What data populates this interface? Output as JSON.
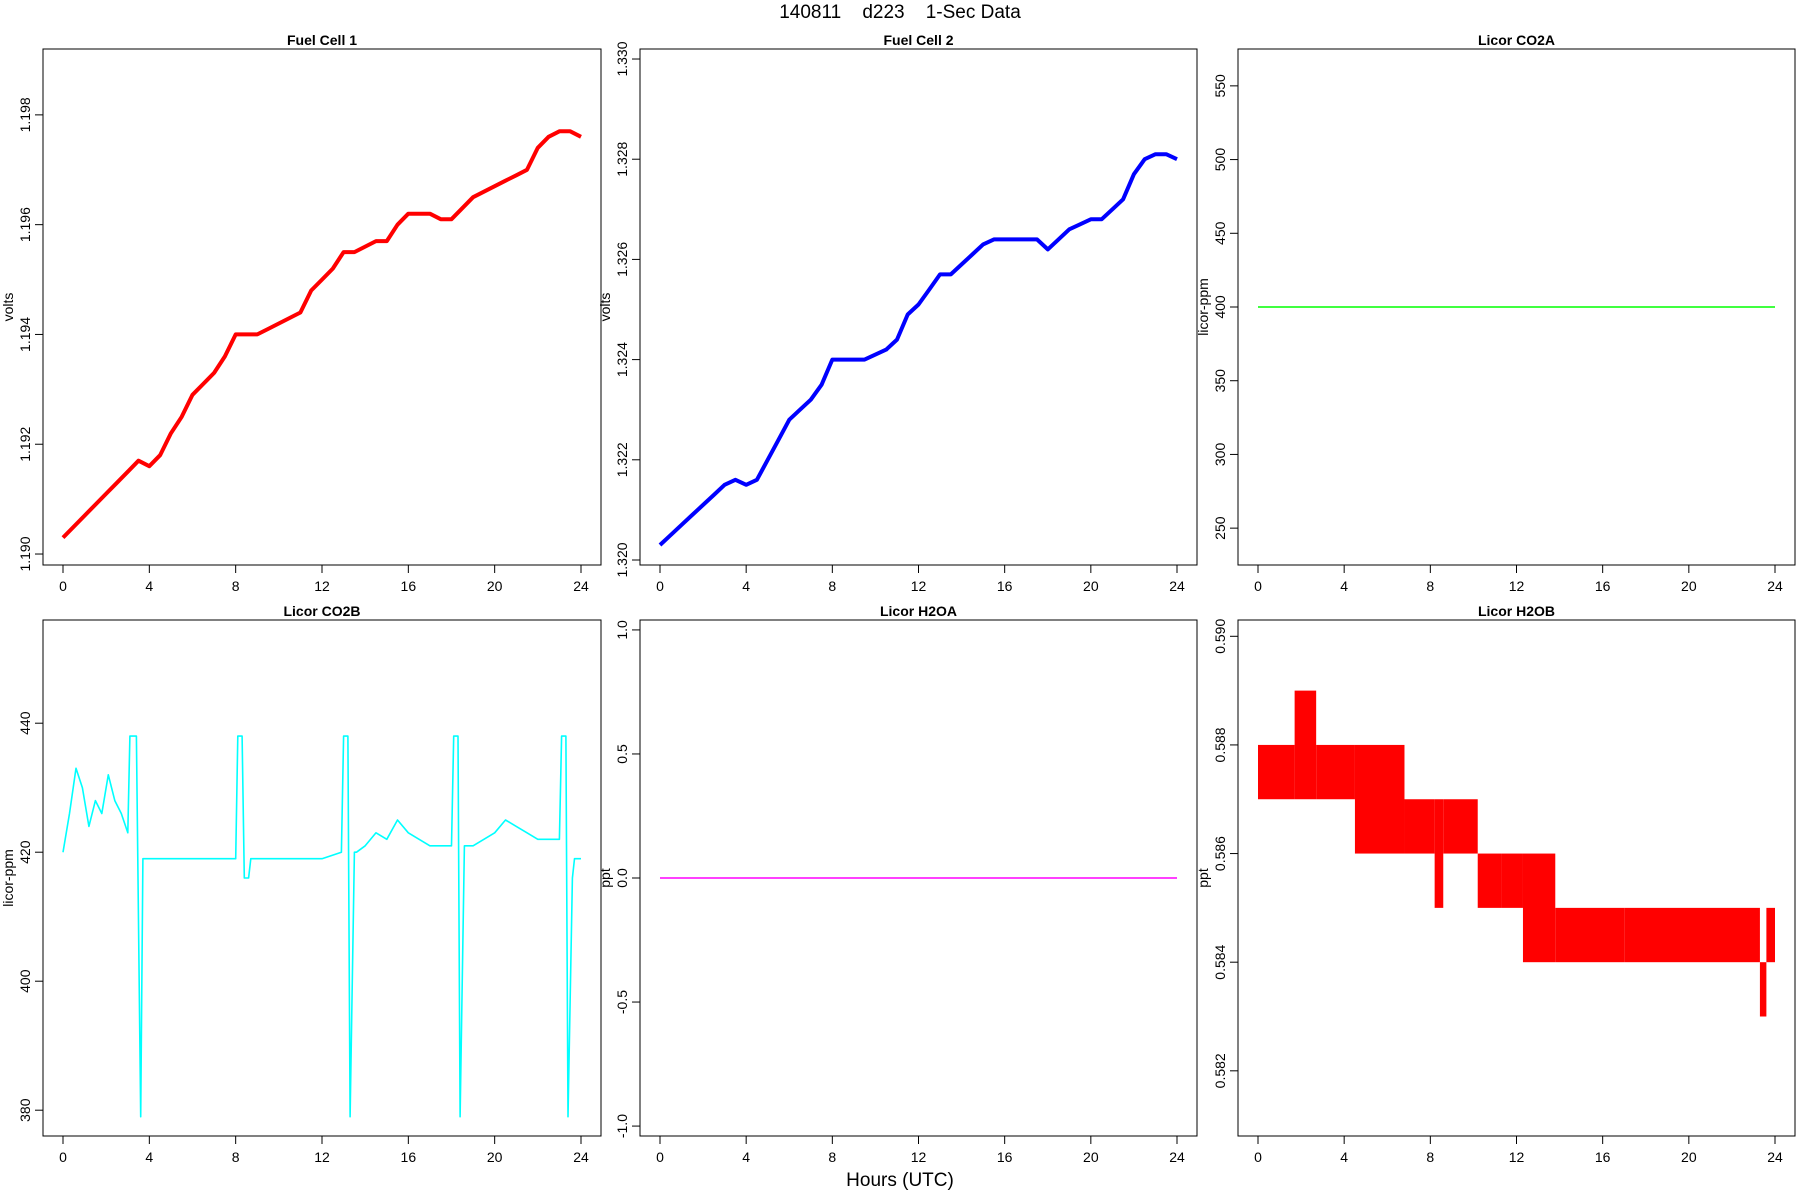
{
  "page": {
    "title": "140811    d223    1-Sec Data",
    "xlabel": "Hours (UTC)"
  },
  "chart_data": [
    {
      "type": "line",
      "title": "Fuel Cell 1",
      "ylabel": "volts",
      "color": "#ff0000",
      "xlim": [
        0,
        24
      ],
      "ylim": [
        1.1898,
        1.1992
      ],
      "xticks": [
        0,
        4,
        8,
        12,
        16,
        20,
        24
      ],
      "xtick_labels": [
        "0",
        "4",
        "8",
        "12",
        "16",
        "20",
        "24"
      ],
      "yticks": [
        1.19,
        1.192,
        1.194,
        1.196,
        1.198
      ],
      "ytick_labels": [
        "1.190",
        "1.192",
        "1.194",
        "1.196",
        "1.198"
      ],
      "series": [
        {
          "x": [
            0,
            0.5,
            1,
            1.5,
            2,
            2.5,
            3,
            3.5,
            4,
            4.5,
            5,
            5.5,
            6,
            6.5,
            7,
            7.5,
            8,
            8.5,
            9,
            9.5,
            10,
            10.5,
            11,
            11.5,
            12,
            12.5,
            13,
            13.5,
            14,
            14.5,
            15,
            15.5,
            16,
            16.5,
            17,
            17.5,
            18,
            18.5,
            19,
            19.5,
            20,
            20.5,
            21,
            21.5,
            22,
            22.5,
            23,
            23.5,
            24
          ],
          "y": [
            1.1903,
            1.1905,
            1.1907,
            1.1909,
            1.1911,
            1.1913,
            1.1915,
            1.1917,
            1.1916,
            1.1918,
            1.1922,
            1.1925,
            1.1929,
            1.1931,
            1.1933,
            1.1936,
            1.194,
            1.194,
            1.194,
            1.1941,
            1.1942,
            1.1943,
            1.1944,
            1.1948,
            1.195,
            1.1952,
            1.1955,
            1.1955,
            1.1956,
            1.1957,
            1.1957,
            1.196,
            1.1962,
            1.1962,
            1.1962,
            1.1961,
            1.1961,
            1.1963,
            1.1965,
            1.1966,
            1.1967,
            1.1968,
            1.1969,
            1.197,
            1.1974,
            1.1976,
            1.1977,
            1.1977,
            1.1976
          ]
        }
      ]
    },
    {
      "type": "line",
      "title": "Fuel Cell 2",
      "ylabel": "volts",
      "color": "#0000ff",
      "xlim": [
        0,
        24
      ],
      "ylim": [
        1.3199,
        1.3302
      ],
      "xticks": [
        0,
        4,
        8,
        12,
        16,
        20,
        24
      ],
      "xtick_labels": [
        "0",
        "4",
        "8",
        "12",
        "16",
        "20",
        "24"
      ],
      "yticks": [
        1.32,
        1.322,
        1.324,
        1.326,
        1.328,
        1.33
      ],
      "ytick_labels": [
        "1.320",
        "1.322",
        "1.324",
        "1.326",
        "1.328",
        "1.330"
      ],
      "series": [
        {
          "x": [
            0,
            0.5,
            1,
            1.5,
            2,
            2.5,
            3,
            3.5,
            4,
            4.5,
            5,
            5.5,
            6,
            6.5,
            7,
            7.5,
            8,
            8.5,
            9,
            9.5,
            10,
            10.5,
            11,
            11.5,
            12,
            12.5,
            13,
            13.5,
            14,
            14.5,
            15,
            15.5,
            16,
            16.5,
            17,
            17.5,
            18,
            18.5,
            19,
            19.5,
            20,
            20.5,
            21,
            21.5,
            22,
            22.5,
            23,
            23.5,
            24
          ],
          "y": [
            1.3203,
            1.3205,
            1.3207,
            1.3209,
            1.3211,
            1.3213,
            1.3215,
            1.3216,
            1.3215,
            1.3216,
            1.322,
            1.3224,
            1.3228,
            1.323,
            1.3232,
            1.3235,
            1.324,
            1.324,
            1.324,
            1.324,
            1.3241,
            1.3242,
            1.3244,
            1.3249,
            1.3251,
            1.3254,
            1.3257,
            1.3257,
            1.3259,
            1.3261,
            1.3263,
            1.3264,
            1.3264,
            1.3264,
            1.3264,
            1.3264,
            1.3262,
            1.3264,
            1.3266,
            1.3267,
            1.3268,
            1.3268,
            1.327,
            1.3272,
            1.3277,
            1.328,
            1.3281,
            1.3281,
            1.328
          ]
        }
      ]
    },
    {
      "type": "line",
      "title": "Licor CO2A",
      "ylabel": "licor-ppm",
      "color": "#00ff00",
      "xlim": [
        0,
        24
      ],
      "ylim": [
        225,
        575
      ],
      "xticks": [
        0,
        4,
        8,
        12,
        16,
        20,
        24
      ],
      "xtick_labels": [
        "0",
        "4",
        "8",
        "12",
        "16",
        "20",
        "24"
      ],
      "yticks": [
        250,
        300,
        350,
        400,
        450,
        500,
        550
      ],
      "ytick_labels": [
        "250",
        "300",
        "350",
        "400",
        "450",
        "500",
        "550"
      ],
      "series": [
        {
          "x": [
            0,
            24
          ],
          "y": [
            400,
            400
          ]
        }
      ]
    },
    {
      "type": "line",
      "title": "Licor CO2B",
      "ylabel": "licor-ppm",
      "color": "#00ffff",
      "xlim": [
        0,
        24
      ],
      "ylim": [
        376,
        456
      ],
      "xticks": [
        0,
        4,
        8,
        12,
        16,
        20,
        24
      ],
      "xtick_labels": [
        "0",
        "4",
        "8",
        "12",
        "16",
        "20",
        "24"
      ],
      "yticks": [
        380,
        400,
        420,
        440
      ],
      "ytick_labels": [
        "380",
        "400",
        "420",
        "440"
      ],
      "series": [
        {
          "x": [
            0,
            0.3,
            0.6,
            0.9,
            1.2,
            1.5,
            1.8,
            2.1,
            2.4,
            2.7,
            3.0,
            3.1,
            3.2,
            3.3,
            3.4,
            3.6,
            3.7,
            4.0,
            5.0,
            6.0,
            7.0,
            8.0,
            8.1,
            8.2,
            8.3,
            8.4,
            8.6,
            8.7,
            9.0,
            10.0,
            11.0,
            12.0,
            12.9,
            13.0,
            13.1,
            13.2,
            13.3,
            13.5,
            13.6,
            14.0,
            14.5,
            15.0,
            15.5,
            16.0,
            16.5,
            17.0,
            17.5,
            18.0,
            18.1,
            18.2,
            18.3,
            18.4,
            18.6,
            18.7,
            19.0,
            19.5,
            20.0,
            20.5,
            21.0,
            21.5,
            22.0,
            22.5,
            23.0,
            23.1,
            23.2,
            23.3,
            23.4,
            23.6,
            23.7,
            24.0
          ],
          "y": [
            420,
            426,
            433,
            430,
            424,
            428,
            426,
            432,
            428,
            426,
            423,
            438,
            438,
            438,
            438,
            379,
            419,
            419,
            419,
            419,
            419,
            419,
            438,
            438,
            438,
            416,
            416,
            419,
            419,
            419,
            419,
            419,
            420,
            438,
            438,
            438,
            379,
            420,
            420,
            421,
            423,
            422,
            425,
            423,
            422,
            421,
            421,
            421,
            438,
            438,
            438,
            379,
            421,
            421,
            421,
            422,
            423,
            425,
            424,
            423,
            422,
            422,
            422,
            438,
            438,
            438,
            379,
            416,
            419,
            419
          ]
        }
      ]
    },
    {
      "type": "line",
      "title": "Licor H2OA",
      "ylabel": "ppt",
      "color": "#ff00ff",
      "xlim": [
        0,
        24
      ],
      "ylim": [
        -1.04,
        1.04
      ],
      "xticks": [
        0,
        4,
        8,
        12,
        16,
        20,
        24
      ],
      "xtick_labels": [
        "0",
        "4",
        "8",
        "12",
        "16",
        "20",
        "24"
      ],
      "yticks": [
        -1.0,
        -0.5,
        0.0,
        0.5,
        1.0
      ],
      "ytick_labels": [
        "-1.0",
        "-0.5",
        "0.0",
        "0.5",
        "1.0"
      ],
      "series": [
        {
          "x": [
            0,
            24
          ],
          "y": [
            0,
            0
          ]
        }
      ]
    },
    {
      "type": "area",
      "title": "Licor H2OB",
      "ylabel": "ppt",
      "color": "#ff0000",
      "xlim": [
        0,
        24
      ],
      "ylim": [
        0.5808,
        0.5903
      ],
      "xticks": [
        0,
        4,
        8,
        12,
        16,
        20,
        24
      ],
      "xtick_labels": [
        "0",
        "4",
        "8",
        "12",
        "16",
        "20",
        "24"
      ],
      "yticks": [
        0.582,
        0.584,
        0.586,
        0.588,
        0.59
      ],
      "ytick_labels": [
        "0.582",
        "0.584",
        "0.586",
        "0.588",
        "0.590"
      ],
      "bands": [
        {
          "x0": 0,
          "x1": 1.7,
          "lo": 0.587,
          "hi": 0.588
        },
        {
          "x0": 1.7,
          "x1": 2.7,
          "lo": 0.587,
          "hi": 0.589
        },
        {
          "x0": 2.7,
          "x1": 4.5,
          "lo": 0.587,
          "hi": 0.588
        },
        {
          "x0": 4.5,
          "x1": 6.8,
          "lo": 0.586,
          "hi": 0.588
        },
        {
          "x0": 6.8,
          "x1": 8.2,
          "lo": 0.586,
          "hi": 0.587
        },
        {
          "x0": 8.2,
          "x1": 8.6,
          "lo": 0.585,
          "hi": 0.587
        },
        {
          "x0": 8.6,
          "x1": 10.2,
          "lo": 0.586,
          "hi": 0.587
        },
        {
          "x0": 10.2,
          "x1": 11.3,
          "lo": 0.585,
          "hi": 0.586
        },
        {
          "x0": 11.3,
          "x1": 12.3,
          "lo": 0.585,
          "hi": 0.586
        },
        {
          "x0": 12.3,
          "x1": 13.8,
          "lo": 0.584,
          "hi": 0.586
        },
        {
          "x0": 13.8,
          "x1": 17.0,
          "lo": 0.584,
          "hi": 0.585
        },
        {
          "x0": 17.0,
          "x1": 23.3,
          "lo": 0.584,
          "hi": 0.585
        },
        {
          "x0": 23.3,
          "x1": 23.6,
          "lo": 0.583,
          "hi": 0.584
        },
        {
          "x0": 23.6,
          "x1": 24.0,
          "lo": 0.584,
          "hi": 0.585
        }
      ]
    }
  ]
}
